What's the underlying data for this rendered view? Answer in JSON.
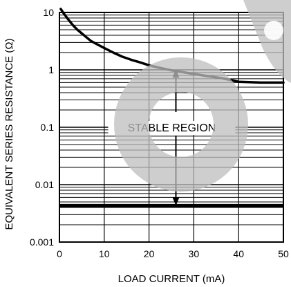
{
  "chart_data": {
    "type": "line",
    "xlabel": "LOAD CURRENT (mA)",
    "ylabel": "EQUIVALENT SERIES RESISTANCE (Ω)",
    "xlim": [
      0,
      50
    ],
    "ylim": [
      0.001,
      10
    ],
    "yscale": "log",
    "x_ticks": [
      0,
      10,
      20,
      30,
      40,
      50
    ],
    "x_tick_labels": [
      "0",
      "10",
      "20",
      "30",
      "40",
      "50"
    ],
    "y_ticks": [
      0.001,
      0.01,
      0.1,
      1,
      10
    ],
    "y_tick_labels": [
      "0.001",
      "0.01",
      "0.1",
      "1",
      "10"
    ],
    "grid": true,
    "series": [
      {
        "x": [
          0.3,
          1,
          2,
          3,
          4,
          5,
          6,
          7,
          8,
          10,
          12,
          14,
          16,
          18,
          20,
          22,
          25,
          28,
          30,
          33,
          36,
          38,
          40,
          45,
          50
        ],
        "y": [
          11.5,
          9.5,
          7.5,
          6.0,
          5.0,
          4.3,
          3.7,
          3.2,
          2.9,
          2.4,
          2.0,
          1.7,
          1.5,
          1.35,
          1.2,
          1.1,
          0.98,
          0.9,
          0.85,
          0.78,
          0.72,
          0.67,
          0.62,
          0.6,
          0.6
        ]
      }
    ],
    "lower_boundary_y": 0.0043,
    "annotation": {
      "text": "STABLE REGION",
      "x": 26,
      "y": 0.1
    },
    "arrow": {
      "x": 26,
      "y_from": 0.1,
      "y_up": 1.02,
      "y_down": 0.0043
    }
  }
}
